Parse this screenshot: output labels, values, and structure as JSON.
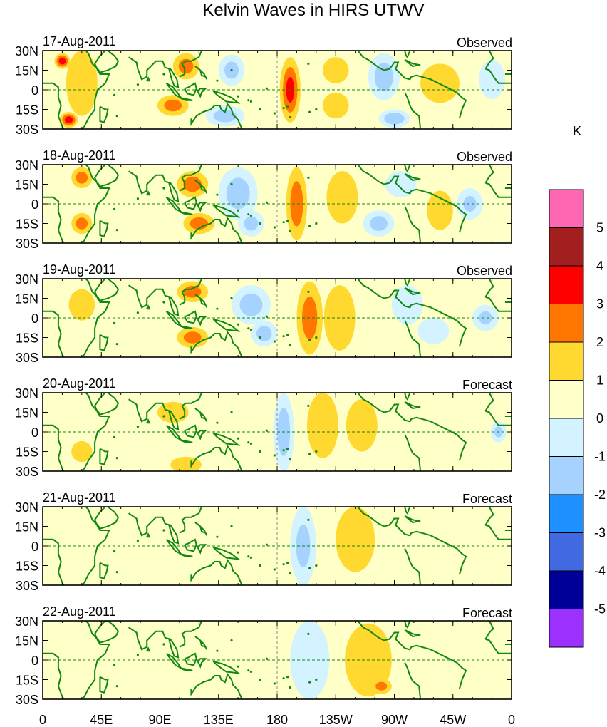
{
  "title": "Kelvin Waves in HIRS UTWV",
  "units_label": "K",
  "panels": [
    {
      "date": "17-Aug-2011",
      "status": "Observed"
    },
    {
      "date": "18-Aug-2011",
      "status": "Observed"
    },
    {
      "date": "19-Aug-2011",
      "status": "Observed"
    },
    {
      "date": "20-Aug-2011",
      "status": "Forecast"
    },
    {
      "date": "21-Aug-2011",
      "status": "Forecast"
    },
    {
      "date": "22-Aug-2011",
      "status": "Forecast"
    }
  ],
  "lat_ticks": [
    "30N",
    "15N",
    "0",
    "15S",
    "30S"
  ],
  "lon_ticks": [
    "0",
    "45E",
    "90E",
    "135E",
    "180",
    "135W",
    "90W",
    "45W",
    "0"
  ],
  "colorbar": {
    "labels": [
      "5",
      "4",
      "3",
      "2",
      "1",
      "0",
      "-1",
      "-2",
      "-3",
      "-4",
      "-5"
    ],
    "colors": [
      "#ff66b3",
      "#a31e1e",
      "#ff0000",
      "#ff7700",
      "#ffd92f",
      "#ffffc8",
      "#d2f3ff",
      "#a5d2ff",
      "#1e90ff",
      "#4169e1",
      "#000096",
      "#9b30ff"
    ]
  },
  "colors": {
    "land": "#118811",
    "zero_line": "#118811",
    "background": "#ffffc8"
  },
  "blobs": [
    [
      {
        "lon": 15,
        "lat": 22,
        "rl": 6,
        "rt": 6,
        "v": 3.6
      },
      {
        "lon": 20,
        "lat": -23,
        "rl": 7,
        "rt": 6,
        "v": 3.6
      },
      {
        "lon": 30,
        "lat": 5,
        "rl": 12,
        "rt": 25,
        "v": 1.5
      },
      {
        "lon": 110,
        "lat": 18,
        "rl": 10,
        "rt": 10,
        "v": 2.3
      },
      {
        "lon": 100,
        "lat": -12,
        "rl": 12,
        "rt": 8,
        "v": 2.3
      },
      {
        "lon": 145,
        "lat": 15,
        "rl": 10,
        "rt": 12,
        "v": -2.2
      },
      {
        "lon": 140,
        "lat": -20,
        "rl": 15,
        "rt": 8,
        "v": -2.5
      },
      {
        "lon": 168,
        "lat": 0,
        "rl": 8,
        "rt": 30,
        "v": -0.8
      },
      {
        "lon": 190,
        "lat": 0,
        "rl": 8,
        "rt": 25,
        "v": 3.3
      },
      {
        "lon": 225,
        "lat": 15,
        "rl": 10,
        "rt": 10,
        "v": 1.5
      },
      {
        "lon": 225,
        "lat": -12,
        "rl": 10,
        "rt": 10,
        "v": 1.3
      },
      {
        "lon": 262,
        "lat": 10,
        "rl": 12,
        "rt": 18,
        "v": -2.5
      },
      {
        "lon": 270,
        "lat": -22,
        "rl": 12,
        "rt": 7,
        "v": -2.8
      },
      {
        "lon": 305,
        "lat": 5,
        "rl": 15,
        "rt": 15,
        "v": 1.1
      },
      {
        "lon": 345,
        "lat": 8,
        "rl": 10,
        "rt": 15,
        "v": -1.2
      }
    ],
    [
      {
        "lon": 30,
        "lat": 20,
        "rl": 8,
        "rt": 8,
        "v": 2.3
      },
      {
        "lon": 30,
        "lat": -15,
        "rl": 8,
        "rt": 8,
        "v": 2.3
      },
      {
        "lon": 55,
        "lat": 0,
        "rl": 10,
        "rt": 20,
        "v": -0.9
      },
      {
        "lon": 115,
        "lat": 15,
        "rl": 12,
        "rt": 10,
        "v": 2.4
      },
      {
        "lon": 120,
        "lat": -15,
        "rl": 12,
        "rt": 8,
        "v": 2.4
      },
      {
        "lon": 150,
        "lat": 8,
        "rl": 15,
        "rt": 20,
        "v": -2.5
      },
      {
        "lon": 160,
        "lat": -15,
        "rl": 10,
        "rt": 10,
        "v": -2.2
      },
      {
        "lon": 195,
        "lat": 0,
        "rl": 8,
        "rt": 28,
        "v": 2.6
      },
      {
        "lon": 230,
        "lat": 5,
        "rl": 12,
        "rt": 20,
        "v": 1.2
      },
      {
        "lon": 258,
        "lat": -15,
        "rl": 12,
        "rt": 10,
        "v": -2.3
      },
      {
        "lon": 275,
        "lat": 15,
        "rl": 12,
        "rt": 10,
        "v": -1.8
      },
      {
        "lon": 305,
        "lat": -5,
        "rl": 10,
        "rt": 15,
        "v": 1.2
      },
      {
        "lon": 328,
        "lat": 0,
        "rl": 10,
        "rt": 12,
        "v": -2.0
      }
    ],
    [
      {
        "lon": 30,
        "lat": 10,
        "rl": 10,
        "rt": 12,
        "v": 1.6
      },
      {
        "lon": 115,
        "lat": 20,
        "rl": 12,
        "rt": 8,
        "v": 2.3
      },
      {
        "lon": 115,
        "lat": -15,
        "rl": 12,
        "rt": 8,
        "v": 2.3
      },
      {
        "lon": 160,
        "lat": 10,
        "rl": 15,
        "rt": 15,
        "v": -2.4
      },
      {
        "lon": 170,
        "lat": -12,
        "rl": 10,
        "rt": 10,
        "v": -2.4
      },
      {
        "lon": 205,
        "lat": 0,
        "rl": 10,
        "rt": 28,
        "v": 2.4
      },
      {
        "lon": 228,
        "lat": 0,
        "rl": 12,
        "rt": 25,
        "v": 1.8
      },
      {
        "lon": 280,
        "lat": 10,
        "rl": 12,
        "rt": 15,
        "v": -1.8
      },
      {
        "lon": 300,
        "lat": -10,
        "rl": 12,
        "rt": 10,
        "v": -1.5
      },
      {
        "lon": 340,
        "lat": 0,
        "rl": 10,
        "rt": 10,
        "v": -2.0
      }
    ],
    [
      {
        "lon": 30,
        "lat": -15,
        "rl": 8,
        "rt": 8,
        "v": 1.5
      },
      {
        "lon": 100,
        "lat": 15,
        "rl": 12,
        "rt": 8,
        "v": 1.3
      },
      {
        "lon": 110,
        "lat": -25,
        "rl": 12,
        "rt": 6,
        "v": 1.4
      },
      {
        "lon": 185,
        "lat": 0,
        "rl": 8,
        "rt": 30,
        "v": -2.6
      },
      {
        "lon": 215,
        "lat": 5,
        "rl": 12,
        "rt": 25,
        "v": 1.7
      },
      {
        "lon": 245,
        "lat": 5,
        "rl": 12,
        "rt": 20,
        "v": 1.6
      },
      {
        "lon": 150,
        "lat": 5,
        "rl": 20,
        "rt": 15,
        "v": -0.8
      },
      {
        "lon": 295,
        "lat": 0,
        "rl": 15,
        "rt": 20,
        "v": -0.8
      },
      {
        "lon": 350,
        "lat": 0,
        "rl": 6,
        "rt": 8,
        "v": -2.1
      }
    ],
    [
      {
        "lon": 30,
        "lat": 0,
        "rl": 15,
        "rt": 20,
        "v": -0.8
      },
      {
        "lon": 200,
        "lat": 0,
        "rl": 10,
        "rt": 30,
        "v": -2.2
      },
      {
        "lon": 240,
        "lat": 5,
        "rl": 15,
        "rt": 25,
        "v": 1.9
      },
      {
        "lon": 300,
        "lat": 5,
        "rl": 15,
        "rt": 15,
        "v": -0.8
      },
      {
        "lon": 130,
        "lat": -5,
        "rl": 15,
        "rt": 15,
        "v": -0.7
      }
    ],
    [
      {
        "lon": 20,
        "lat": 0,
        "rl": 15,
        "rt": 20,
        "v": -0.7
      },
      {
        "lon": 205,
        "lat": 0,
        "rl": 15,
        "rt": 30,
        "v": -1.6
      },
      {
        "lon": 250,
        "lat": 0,
        "rl": 18,
        "rt": 28,
        "v": 1.6
      },
      {
        "lon": 260,
        "lat": -20,
        "rl": 8,
        "rt": 6,
        "v": 2.2
      }
    ]
  ]
}
